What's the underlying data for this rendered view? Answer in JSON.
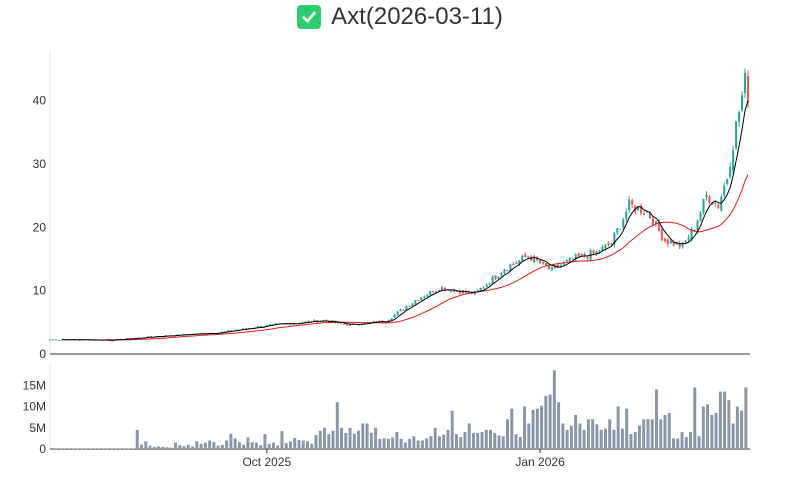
{
  "title": {
    "icon": "check-mark-icon",
    "text": "Axt(2026-03-11)"
  },
  "colors": {
    "up": "#26a69a",
    "down": "#ef5350",
    "ma_short": "#000000",
    "ma_long": "#e31a1c",
    "volume": "#8a96a8",
    "badge": "#2ecc71",
    "axis": "#333333"
  },
  "chart_data": [
    {
      "type": "candlestick",
      "panel": "price",
      "title": "Axt(2026-03-11)",
      "ylim": [
        0,
        48
      ],
      "yticks": [
        0,
        10,
        20,
        30,
        40
      ],
      "x_range": [
        "2025-07-20",
        "2026-03-12"
      ],
      "x_ticks": [
        {
          "date": "2025-10-01",
          "label": "Oct 2025"
        },
        {
          "date": "2026-01-01",
          "label": "Jan 2026"
        }
      ],
      "grid": false,
      "series": [
        {
          "kind": "candles",
          "note": "OHLC daily candles generated from anchor path"
        },
        {
          "kind": "ma_short",
          "window": 5
        },
        {
          "kind": "ma_long",
          "window": 20
        }
      ],
      "anchors": [
        [
          "2025-07-20",
          2.3
        ],
        [
          "2025-08-10",
          2.2
        ],
        [
          "2025-08-25",
          2.8
        ],
        [
          "2025-09-15",
          3.4
        ],
        [
          "2025-10-01",
          4.5
        ],
        [
          "2025-10-20",
          5.3
        ],
        [
          "2025-10-28",
          4.6
        ],
        [
          "2025-11-10",
          5.2
        ],
        [
          "2025-11-20",
          8.5
        ],
        [
          "2025-11-28",
          10.5
        ],
        [
          "2025-12-10",
          9.5
        ],
        [
          "2025-12-20",
          13.5
        ],
        [
          "2025-12-28",
          15.5
        ],
        [
          "2026-01-05",
          13.2
        ],
        [
          "2026-01-12",
          15.0
        ],
        [
          "2026-01-20",
          16.0
        ],
        [
          "2026-01-25",
          17.5
        ],
        [
          "2026-01-31",
          23.5
        ],
        [
          "2026-02-06",
          22.5
        ],
        [
          "2026-02-12",
          18.0
        ],
        [
          "2026-02-18",
          17.0
        ],
        [
          "2026-02-22",
          20.0
        ],
        [
          "2026-02-26",
          25.0
        ],
        [
          "2026-03-02",
          23.5
        ],
        [
          "2026-03-05",
          28.0
        ],
        [
          "2026-03-08",
          36.0
        ],
        [
          "2026-03-11",
          43.0
        ],
        [
          "2026-03-12",
          41.0
        ]
      ]
    },
    {
      "type": "bar",
      "panel": "volume",
      "ylim": [
        0,
        20000000
      ],
      "yticks": [
        {
          "value": 0,
          "label": "0"
        },
        {
          "value": 5000000,
          "label": "5M"
        },
        {
          "value": 10000000,
          "label": "10M"
        },
        {
          "value": 15000000,
          "label": "15M"
        }
      ],
      "values_millions": [
        0.2,
        0.1,
        0.1,
        0.1,
        0.1,
        0.1,
        0.1,
        0.1,
        0.1,
        0.1,
        0.1,
        0.1,
        0.1,
        0.1,
        0.1,
        0.1,
        0.1,
        0.1,
        0.1,
        0.1,
        4.5,
        1.0,
        1.8,
        0.8,
        0.5,
        0.6,
        0.5,
        0.4,
        0.3,
        1.5,
        0.9,
        0.7,
        1.0,
        0.6,
        1.8,
        1.2,
        1.5,
        2.0,
        1.7,
        0.8,
        1.0,
        2.0,
        3.6,
        2.5,
        1.6,
        1.0,
        2.7,
        1.6,
        1.5,
        0.9,
        3.5,
        1.2,
        1.5,
        0.8,
        4.2,
        1.4,
        1.8,
        2.6,
        2.1,
        2.0,
        1.8,
        1.2,
        3.3,
        4.3,
        5.0,
        3.5,
        4.3,
        11.0,
        5.0,
        3.8,
        5.0,
        3.6,
        4.3,
        6.0,
        6.0,
        3.8,
        5.0,
        2.4,
        2.5,
        2.4,
        2.7,
        4.0,
        2.4,
        1.5,
        2.4,
        3.0,
        2.0,
        2.0,
        2.5,
        3.0,
        5.0,
        3.0,
        3.4,
        4.5,
        9.0,
        3.5,
        2.8,
        4.0,
        6.0,
        3.8,
        3.8,
        4.0,
        4.5,
        4.5,
        3.8,
        3.2,
        3.0,
        7.0,
        9.5,
        3.5,
        2.8,
        10.0,
        6.0,
        9.2,
        9.5,
        10.2,
        12.5,
        12.8,
        18.5,
        11.0,
        6.0,
        4.5,
        5.5,
        8.0,
        6.0,
        4.5,
        7.0,
        7.0,
        5.8,
        4.5,
        4.8,
        7.0,
        4.5,
        10.0,
        4.8,
        9.5,
        3.5,
        4.0,
        5.5,
        7.0,
        7.0,
        7.0,
        14.0,
        7.0,
        8.0,
        8.5,
        2.5,
        2.5,
        4.0,
        2.8,
        4.0,
        14.5,
        3.0,
        10.0,
        10.5,
        8.0,
        8.5,
        13.5,
        13.5,
        11.5,
        6.0,
        10.0,
        9.0,
        14.5
      ]
    }
  ]
}
